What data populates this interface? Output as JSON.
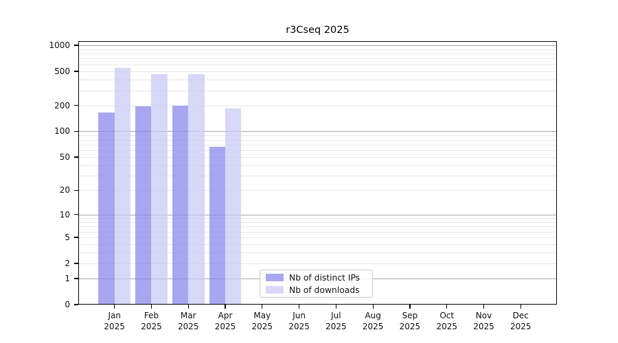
{
  "title": "r3Cseq 2025",
  "chart_data": {
    "type": "bar",
    "title": "r3Cseq 2025",
    "year_label": "2025",
    "categories": [
      "Jan",
      "Feb",
      "Mar",
      "Apr",
      "May",
      "Jun",
      "Jul",
      "Aug",
      "Sep",
      "Oct",
      "Nov",
      "Dec"
    ],
    "series": [
      {
        "name": "Nb of distinct IPs",
        "values": [
          165,
          195,
          200,
          66,
          null,
          null,
          null,
          null,
          null,
          null,
          null,
          null
        ],
        "bar_color": "rgba(133,133,236,0.72)",
        "legend_color": "#a8a8f0"
      },
      {
        "name": "Nb of downloads",
        "values": [
          550,
          465,
          465,
          185,
          null,
          null,
          null,
          null,
          null,
          null,
          null,
          null
        ],
        "bar_color": "rgba(200,200,244,0.72)",
        "legend_color": "#d8d8f8"
      }
    ],
    "y_ticks": [
      0,
      1,
      2,
      5,
      10,
      20,
      50,
      100,
      200,
      500,
      1000
    ],
    "y_scale": "log10(1+x)",
    "ylim": [
      0,
      1100
    ],
    "xlabel": "",
    "ylabel": "",
    "grid": {
      "orientation": "horizontal",
      "major_at": [
        1,
        10,
        100,
        1000
      ],
      "minor_rule": "2-9 per decade",
      "major_color": "#a6a6a6",
      "minor_color": "#e8e8e8"
    },
    "legend_position": "lower center"
  },
  "colors": {
    "background": "#ffffff",
    "axis": "#000000",
    "text": "#111111"
  }
}
